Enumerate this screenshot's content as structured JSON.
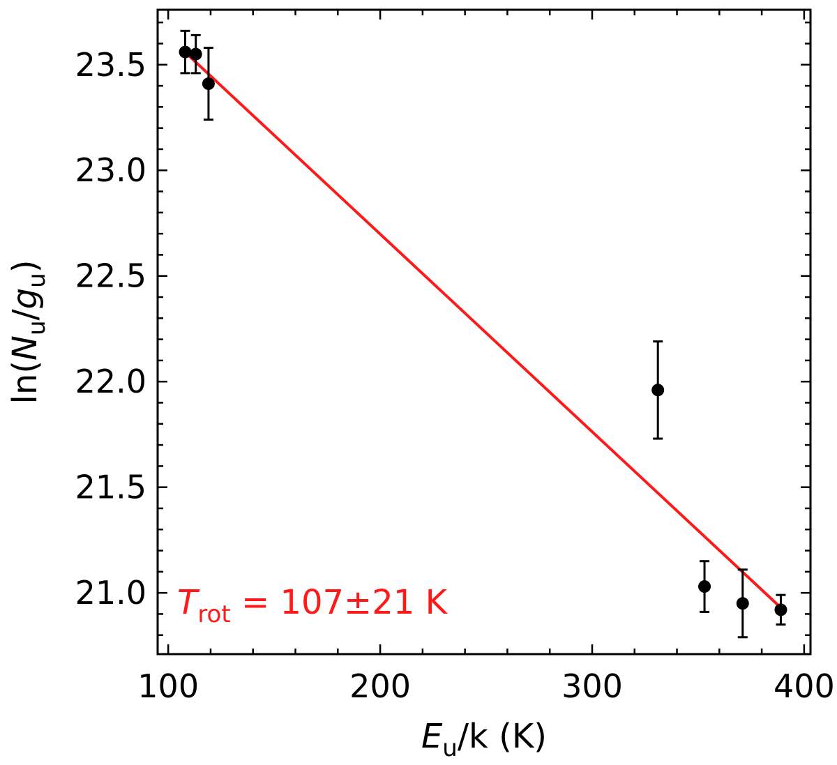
{
  "chart_data": {
    "type": "scatter",
    "title": "",
    "xlabel": {
      "main": "E",
      "sub": "u",
      "rest": "/k (K)"
    },
    "ylabel": {
      "prefix": "ln(",
      "n": "N",
      "n_sub": "u",
      "slash": "/",
      "g": "g",
      "g_sub": "u",
      "suffix": ")"
    },
    "xlim": [
      95,
      403
    ],
    "ylim": [
      20.71,
      23.76
    ],
    "x_ticks": [
      100,
      200,
      300,
      400
    ],
    "x_tick_labels": [
      "100",
      "200",
      "300",
      "400"
    ],
    "x_minor_step": 20,
    "y_ticks": [
      21.0,
      21.5,
      22.0,
      22.5,
      23.0,
      23.5
    ],
    "y_tick_labels": [
      "21.0",
      "21.5",
      "22.0",
      "22.5",
      "23.0",
      "23.5"
    ],
    "y_minor_step": 0.1,
    "grid": false,
    "series": [
      {
        "kind": "errorbar",
        "color": "#000000",
        "x": [
          108,
          113,
          119,
          331,
          353,
          371,
          389
        ],
        "y": [
          23.56,
          23.55,
          23.41,
          21.96,
          21.03,
          20.95,
          20.92
        ],
        "yerr": [
          0.1,
          0.09,
          0.17,
          0.23,
          0.12,
          0.16,
          0.07
        ]
      },
      {
        "kind": "fit-line",
        "color": "#ff1a1a",
        "x": [
          110,
          389
        ],
        "y": [
          23.54,
          20.93
        ]
      }
    ],
    "annotation": {
      "prefix": "T",
      "sub": "rot",
      "rest": " = 107±21 K",
      "color": "#ff1a1a"
    }
  }
}
